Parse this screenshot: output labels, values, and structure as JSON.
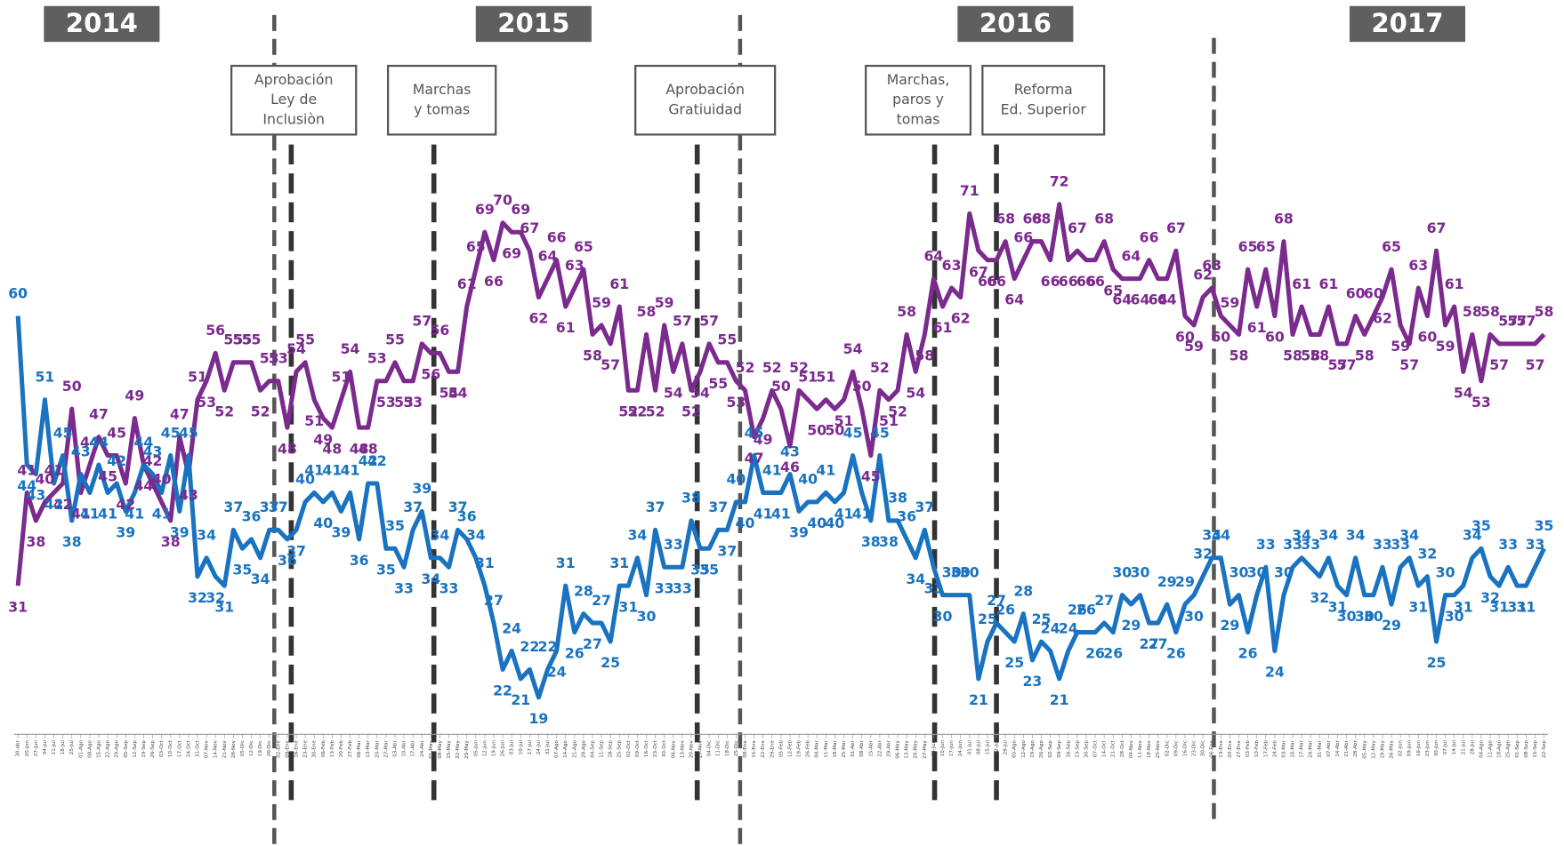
{
  "chart_data": {
    "type": "line",
    "year_labels": [
      "2014",
      "2015",
      "2016",
      "2017"
    ],
    "events": [
      {
        "lines": [
          "Aprobación",
          "Ley de",
          "Inclusiòn"
        ]
      },
      {
        "lines": [
          "Marchas",
          "y tomas"
        ]
      },
      {
        "lines": [
          "Aprobación",
          "Gratiuidad"
        ]
      },
      {
        "lines": [
          "Marchas,",
          "paros y",
          "tomas"
        ]
      },
      {
        "lines": [
          "Reforma",
          "Ed. Superior"
        ]
      }
    ],
    "ylim": [
      10,
      80
    ],
    "categories": [
      "30-abr",
      "20-Jun",
      "27-Jun",
      "04-Jul",
      "11-Jul",
      "18-Jul",
      "25-Jul",
      "01-Ago",
      "08-Ago",
      "15-Ago",
      "22-Ago",
      "29-Ago",
      "05-Sep",
      "12-Sep",
      "19-Sep",
      "26-Sep",
      "03-Oct",
      "10-Oct",
      "17-Oct",
      "24-Oct",
      "31-Oct",
      "07-Nov",
      "14-Nov",
      "21-Nov",
      "28-Nov",
      "05-Dic",
      "12-Dic",
      "19-Dic",
      "26-Dic",
      "02-Ene",
      "09-Ene",
      "16-Ene",
      "23-Ene",
      "30-Ene",
      "06-Feb",
      "13-Feb",
      "20-Feb",
      "27-Feb",
      "06-Mar",
      "13-Mar",
      "20-Mar",
      "27-Mar",
      "03-Abr",
      "10-Abr",
      "17-Abr",
      "24-Abr",
      "01-May",
      "08-May",
      "15-May",
      "22-May",
      "29-May",
      "05-Jun",
      "12-Jun",
      "19-Jun",
      "26-Jun",
      "03-Jul",
      "10-Jul",
      "17-Jul",
      "24-Jul",
      "31-Jul",
      "07-Ago",
      "14-Ago",
      "21-Ago",
      "28-Ago",
      "04-Sep",
      "11-Sep",
      "18-Sep",
      "25-Sep",
      "02-Oct",
      "09-Oct",
      "16-Oct",
      "23-Oct",
      "30-Oct",
      "06-Nov",
      "13-Nov",
      "20-Nov",
      "27-Nov",
      "04-Dic",
      "11-Dic",
      "18-Dic",
      "25-Dic",
      "08-Ene",
      "15-Ene",
      "22-Ene",
      "29-Ene",
      "05-Feb",
      "12-Feb",
      "19-Feb",
      "26-Feb",
      "04-Mar",
      "11-Mar",
      "18-Mar",
      "25-Mar",
      "01-Abr",
      "08-Abr",
      "15-Abr",
      "22-Abr",
      "29-Abr",
      "06-May",
      "13-May",
      "20-May",
      "27-May",
      "03-Jun",
      "10-Jun",
      "17-Jun",
      "24-Jun",
      "01-Jul",
      "08-Jul",
      "15-Jul",
      "22-Jul",
      "29-Jul",
      "05-Ago",
      "12-Ago",
      "19-Ago",
      "26-Ago",
      "02-Sep",
      "09-Sep",
      "16-Sep",
      "23-Sep",
      "30-Sep",
      "07-Oct",
      "14-Oct",
      "21-Oct",
      "28-Oct",
      "04-Nov",
      "11-Nov",
      "18-Nov",
      "25-Nov",
      "02-Dic",
      "09-Dic",
      "16-Dic",
      "23-Dic",
      "30-Dic",
      "06-Ene",
      "13-Ene",
      "20-Ene",
      "27-Ene",
      "03-Feb",
      "10-Feb",
      "17-Feb",
      "24-Feb",
      "03-Mar",
      "10-Mar",
      "17-Mar",
      "24-Mar",
      "31-Mar",
      "07-Abr",
      "14-Abr",
      "21-Abr",
      "28-Abr",
      "05-May",
      "12-May",
      "19-May",
      "26-May",
      "02-Jun",
      "09-Jun",
      "16-Jun",
      "23-Jun",
      "30-Jun",
      "07-Jul",
      "14-Jul",
      "21-Jul",
      "28-Jul",
      "04-Ago",
      "11-Ago",
      "18-Ago",
      "25-Ago",
      "01-Sep",
      "08-Sep",
      "15-Sep",
      "22-Sep"
    ],
    "series": [
      {
        "color": "#7b2a8e",
        "values": [
          31,
          41,
          38,
          40,
          41,
          42,
          50,
          41,
          44,
          47,
          45,
          45,
          42,
          49,
          44,
          42,
          40,
          38,
          47,
          43,
          51,
          53,
          56,
          52,
          55,
          55,
          55,
          52,
          53,
          53,
          48,
          54,
          55,
          51,
          49,
          48,
          51,
          54,
          48,
          48,
          53,
          53,
          55,
          53,
          53,
          57,
          56,
          56,
          54,
          54,
          61,
          65,
          69,
          66,
          70,
          69,
          69,
          67,
          62,
          64,
          66,
          61,
          63,
          65,
          58,
          59,
          57,
          61,
          52,
          52,
          58,
          52,
          59,
          54,
          57,
          52,
          54,
          57,
          55,
          55,
          53,
          52,
          47,
          49,
          52,
          50,
          46,
          52,
          51,
          50,
          51,
          50,
          51,
          54,
          50,
          45,
          52,
          51,
          52,
          58,
          54,
          58,
          64,
          61,
          63,
          62,
          71,
          67,
          66,
          66,
          68,
          64,
          66,
          68,
          68,
          66,
          72,
          66,
          67,
          66,
          66,
          68,
          65,
          64,
          64,
          64,
          66,
          64,
          64,
          67,
          60,
          59,
          62,
          63,
          60,
          59,
          58,
          65,
          61,
          65,
          60,
          68,
          58,
          61,
          58,
          58,
          61,
          57,
          57,
          60,
          58,
          60,
          62,
          65,
          59,
          57,
          63,
          60,
          67,
          59,
          61,
          54,
          58,
          53,
          58,
          57,
          57,
          57,
          57,
          57,
          58
        ]
      },
      {
        "color": "#1a73c0",
        "values": [
          60,
          44,
          43,
          51,
          42,
          45,
          38,
          43,
          41,
          44,
          41,
          42,
          39,
          41,
          44,
          43,
          41,
          45,
          39,
          45,
          32,
          34,
          32,
          31,
          37,
          35,
          36,
          34,
          37,
          37,
          36,
          37,
          40,
          41,
          40,
          41,
          39,
          41,
          36,
          42,
          42,
          35,
          35,
          33,
          37,
          39,
          34,
          34,
          33,
          37,
          36,
          34,
          31,
          27,
          22,
          24,
          21,
          22,
          19,
          22,
          24,
          31,
          26,
          28,
          27,
          27,
          25,
          31,
          31,
          34,
          30,
          37,
          33,
          33,
          33,
          38,
          35,
          35,
          37,
          37,
          40,
          40,
          45,
          41,
          41,
          41,
          43,
          39,
          40,
          40,
          41,
          40,
          41,
          45,
          41,
          38,
          45,
          38,
          38,
          36,
          34,
          37,
          33,
          30,
          30,
          30,
          30,
          21,
          25,
          27,
          26,
          25,
          28,
          23,
          25,
          24,
          21,
          24,
          26,
          26,
          26,
          27,
          26,
          30,
          29,
          30,
          27,
          27,
          29,
          26,
          29,
          30,
          32,
          34,
          34,
          29,
          30,
          26,
          30,
          33,
          24,
          30,
          33,
          34,
          33,
          32,
          34,
          31,
          30,
          34,
          30,
          30,
          33,
          29,
          33,
          34,
          31,
          32,
          25,
          30,
          30,
          31,
          34,
          35,
          32,
          31,
          33,
          31,
          31,
          33,
          35
        ]
      }
    ]
  }
}
